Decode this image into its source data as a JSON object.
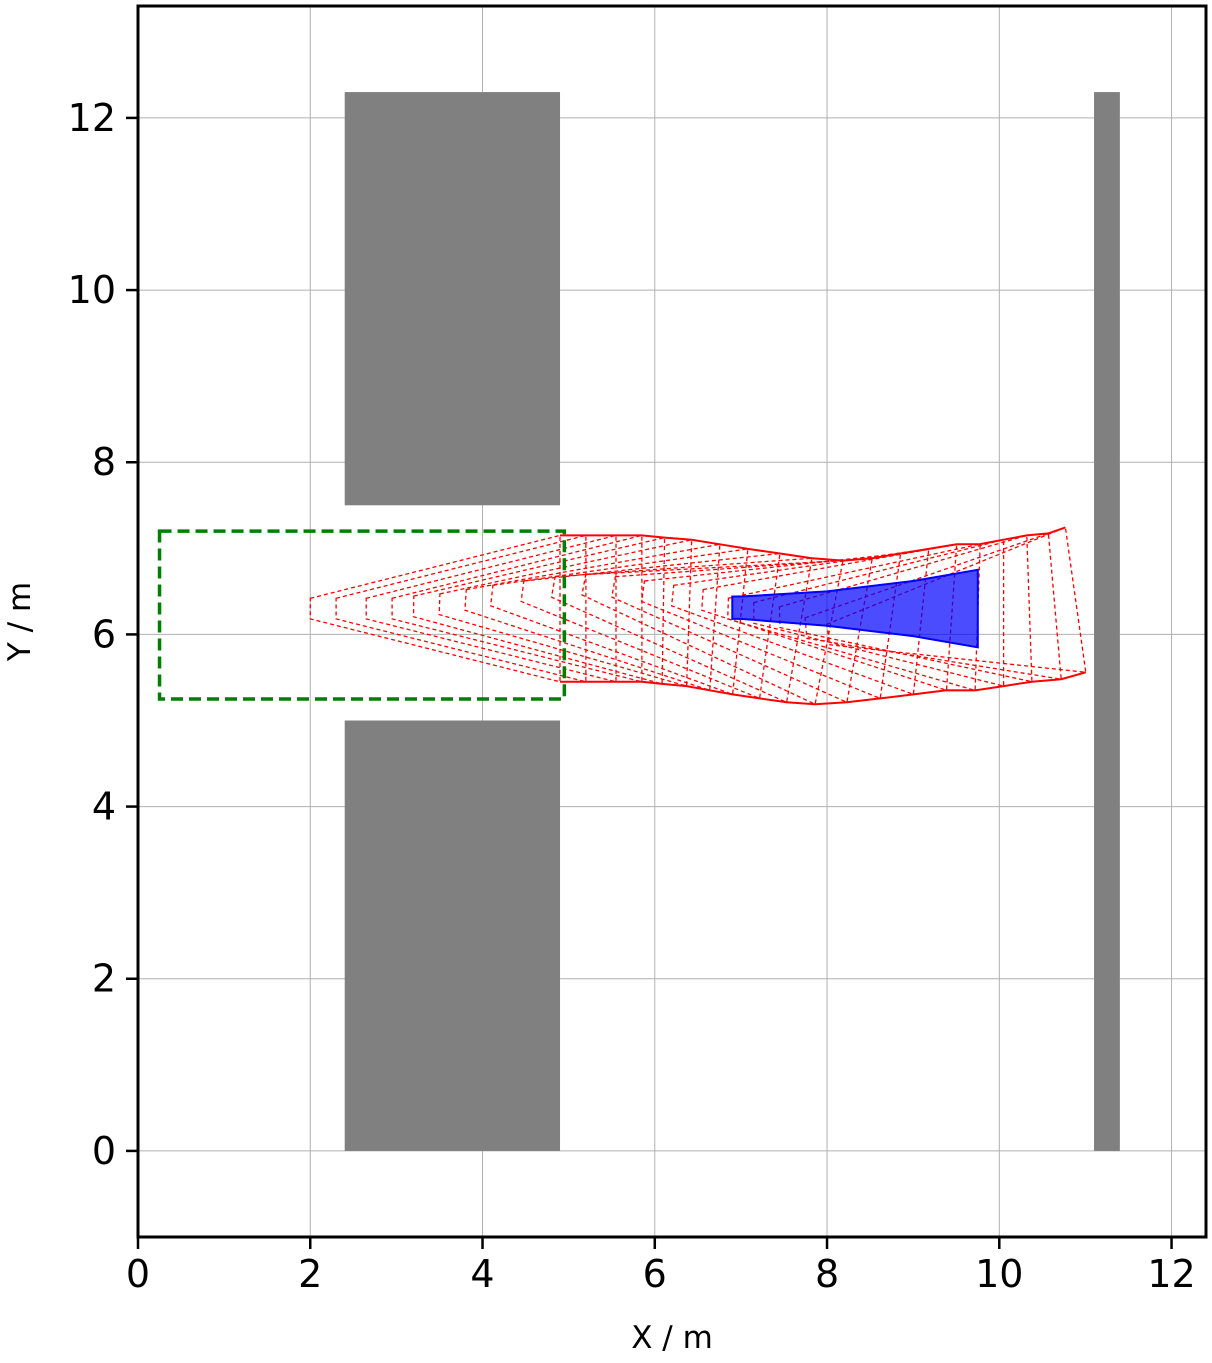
{
  "chart_data": {
    "type": "scatter",
    "title": "",
    "xlabel": "X / m",
    "ylabel": "Y / m",
    "xlim": [
      0,
      12.4
    ],
    "ylim": [
      -1,
      13.3
    ],
    "xticks": [
      0,
      2,
      4,
      6,
      8,
      10,
      12
    ],
    "yticks": [
      0,
      2,
      4,
      6,
      8,
      10,
      12
    ],
    "grid": true,
    "colors": {
      "obstacle": "#808080",
      "goal": "#008000",
      "trajectory": "#ff0000",
      "vehicle": "#0000ff"
    },
    "obstacles": [
      {
        "x": [
          2.4,
          4.9
        ],
        "y": [
          7.5,
          12.3
        ]
      },
      {
        "x": [
          2.4,
          4.9
        ],
        "y": [
          0.0,
          5.0
        ]
      },
      {
        "x": [
          11.1,
          11.4
        ],
        "y": [
          0.0,
          12.3
        ]
      }
    ],
    "goal_region": {
      "x": [
        0.25,
        4.95
      ],
      "y": [
        5.25,
        7.2
      ]
    },
    "trajectory_poses": [
      {
        "x": 9.45,
        "y": 6.2,
        "heading_deg": 8
      },
      {
        "x": 9.2,
        "y": 6.2,
        "heading_deg": 5
      },
      {
        "x": 8.9,
        "y": 6.25,
        "heading_deg": 2
      },
      {
        "x": 8.6,
        "y": 6.25,
        "heading_deg": 0
      },
      {
        "x": 8.3,
        "y": 6.25,
        "heading_deg": -2
      },
      {
        "x": 8.0,
        "y": 6.3,
        "heading_deg": -4
      },
      {
        "x": 7.65,
        "y": 6.3,
        "heading_deg": -6
      },
      {
        "x": 7.3,
        "y": 6.3,
        "heading_deg": -8
      },
      {
        "x": 6.95,
        "y": 6.3,
        "heading_deg": -10
      },
      {
        "x": 6.6,
        "y": 6.3,
        "heading_deg": -11
      },
      {
        "x": 6.25,
        "y": 6.3,
        "heading_deg": -10
      },
      {
        "x": 5.9,
        "y": 6.3,
        "heading_deg": -8
      },
      {
        "x": 5.55,
        "y": 6.3,
        "heading_deg": -6
      },
      {
        "x": 5.25,
        "y": 6.3,
        "heading_deg": -4
      },
      {
        "x": 4.95,
        "y": 6.3,
        "heading_deg": -2
      },
      {
        "x": 4.65,
        "y": 6.3,
        "heading_deg": -1
      },
      {
        "x": 4.4,
        "y": 6.3,
        "heading_deg": 0
      },
      {
        "x": 4.1,
        "y": 6.3,
        "heading_deg": 0
      },
      {
        "x": 3.75,
        "y": 6.3,
        "heading_deg": 0
      },
      {
        "x": 3.45,
        "y": 6.3,
        "heading_deg": 0
      }
    ],
    "vehicle_shape": {
      "x": [
        6.9,
        6.9,
        7.0,
        8.0,
        9.0,
        9.75,
        9.75,
        9.0,
        8.0,
        7.0
      ],
      "y": [
        6.18,
        6.44,
        6.44,
        6.5,
        6.62,
        6.75,
        5.85,
        5.98,
        6.1,
        6.18
      ]
    }
  }
}
